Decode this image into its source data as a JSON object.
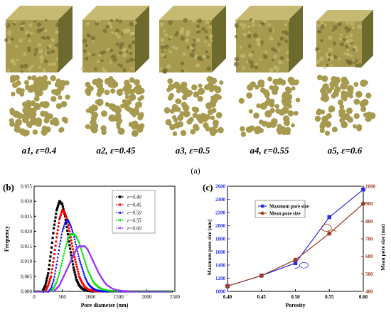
{
  "panel_a": {
    "label": "(a)",
    "samples": [
      {
        "id": "a1",
        "eps_text": "ε=0.4",
        "porosity": 0.4
      },
      {
        "id": "a2",
        "eps_text": "ε=0.45",
        "porosity": 0.45
      },
      {
        "id": "a3",
        "eps_text": "ε=0.5",
        "porosity": 0.5
      },
      {
        "id": "a4",
        "eps_text": "ε=0.55",
        "porosity": 0.55
      },
      {
        "id": "a5",
        "eps_text": "ε=0.6",
        "porosity": 0.6
      }
    ],
    "colors": {
      "particle": "#a79a4f",
      "particle_dark": "#6d6a2d",
      "particle_light": "#c6ba72"
    }
  },
  "chart_data": [
    {
      "panel_label": "(b)",
      "type": "scatter",
      "xlabel": "Pore diameter (nm)",
      "ylabel": "Frequency",
      "xlim": [
        0,
        2500
      ],
      "ylim": [
        0,
        0.035
      ],
      "xticks": [
        0,
        500,
        1000,
        1500,
        2000,
        2500
      ],
      "yticks": [
        0.0,
        0.005,
        0.01,
        0.015,
        0.02,
        0.025,
        0.03,
        0.035
      ],
      "ytick_labels": [
        "0.000",
        "0.005",
        "0.010",
        "0.015",
        "0.020",
        "0.025",
        "0.030",
        "0.035"
      ],
      "legend_position": "top-right",
      "series": [
        {
          "name": "ε=0.40",
          "color": "#000000",
          "marker": "square",
          "x": [
            150,
            200,
            250,
            300,
            350,
            400,
            450,
            500,
            550,
            600,
            650,
            700,
            750,
            800,
            850,
            900,
            950,
            1000,
            1050
          ],
          "values": [
            0.0,
            0.002,
            0.006,
            0.013,
            0.021,
            0.027,
            0.03,
            0.029,
            0.025,
            0.019,
            0.013,
            0.008,
            0.004,
            0.002,
            0.001,
            0.0005,
            0.0002,
            0.0001,
            0.0
          ]
        },
        {
          "name": "ε=0.45",
          "color": "#ff0000",
          "marker": "circle",
          "x": [
            200,
            250,
            300,
            350,
            400,
            450,
            500,
            550,
            600,
            650,
            700,
            750,
            800,
            850,
            900,
            950,
            1000,
            1050,
            1100,
            1150,
            1200
          ],
          "values": [
            0.0,
            0.002,
            0.005,
            0.011,
            0.018,
            0.024,
            0.027,
            0.026,
            0.023,
            0.018,
            0.013,
            0.009,
            0.005,
            0.003,
            0.0015,
            0.0008,
            0.0004,
            0.0002,
            0.0001,
            5e-05,
            0.0
          ]
        },
        {
          "name": "ε=0.50",
          "color": "#0000ff",
          "marker": "triangle",
          "x": [
            250,
            300,
            350,
            400,
            450,
            500,
            550,
            600,
            650,
            700,
            750,
            800,
            850,
            900,
            950,
            1000,
            1050,
            1100,
            1150,
            1200,
            1250,
            1300
          ],
          "values": [
            0.0,
            0.001,
            0.004,
            0.009,
            0.015,
            0.02,
            0.023,
            0.024,
            0.022,
            0.019,
            0.015,
            0.011,
            0.008,
            0.005,
            0.003,
            0.0018,
            0.001,
            0.0005,
            0.0003,
            0.0001,
            5e-05,
            0.0
          ]
        },
        {
          "name": "ε=0.55",
          "color": "#00e000",
          "marker": "triangle-down",
          "x": [
            300,
            350,
            400,
            450,
            500,
            550,
            600,
            650,
            700,
            750,
            800,
            850,
            900,
            950,
            1000,
            1050,
            1100,
            1150,
            1200,
            1300,
            1400,
            1500
          ],
          "values": [
            0.0,
            0.001,
            0.003,
            0.006,
            0.01,
            0.014,
            0.017,
            0.019,
            0.019,
            0.018,
            0.016,
            0.013,
            0.01,
            0.007,
            0.005,
            0.003,
            0.002,
            0.0012,
            0.0007,
            0.0002,
            5e-05,
            0.0
          ]
        },
        {
          "name": "ε=0.60",
          "color": "#9b30ff",
          "marker": "diamond",
          "x": [
            350,
            400,
            450,
            500,
            550,
            600,
            650,
            700,
            750,
            800,
            850,
            900,
            950,
            1000,
            1050,
            1100,
            1150,
            1200,
            1250,
            1300,
            1400,
            1500,
            1600,
            1700
          ],
          "values": [
            0.0,
            0.001,
            0.002,
            0.004,
            0.006,
            0.008,
            0.01,
            0.012,
            0.014,
            0.015,
            0.015,
            0.015,
            0.014,
            0.012,
            0.01,
            0.008,
            0.006,
            0.0045,
            0.003,
            0.002,
            0.0008,
            0.0003,
            0.0001,
            0.0
          ]
        }
      ]
    },
    {
      "panel_label": "(c)",
      "type": "line",
      "xlabel": "Porosity",
      "ylabel": "Maxmum pore size (nm)",
      "y2label": "Mean pore size (nm)",
      "x": [
        0.4,
        0.45,
        0.5,
        0.55,
        0.6
      ],
      "xticks": [
        0.4,
        0.45,
        0.5,
        0.55,
        0.6
      ],
      "xtick_labels": [
        "0.40",
        "0.45",
        "0.50",
        "0.55",
        "0.60"
      ],
      "xlim": [
        0.4,
        0.6
      ],
      "ylim": [
        1000,
        2600
      ],
      "yticks": [
        1000,
        1200,
        1400,
        1600,
        1800,
        2000,
        2200,
        2400,
        2600
      ],
      "y2lim": [
        400,
        1000
      ],
      "y2ticks": [
        400,
        500,
        600,
        700,
        800,
        900,
        1000
      ],
      "legend_position": "top-left",
      "series": [
        {
          "name": "Maxmum pore size",
          "axis": "left",
          "color": "#2a2ae8",
          "marker": "square",
          "values": [
            1080,
            1240,
            1430,
            2130,
            2550
          ]
        },
        {
          "name": "Mean pore size",
          "axis": "right",
          "color": "#9e3a1e",
          "marker": "circle",
          "values": [
            430,
            490,
            580,
            730,
            900
          ]
        }
      ]
    }
  ]
}
